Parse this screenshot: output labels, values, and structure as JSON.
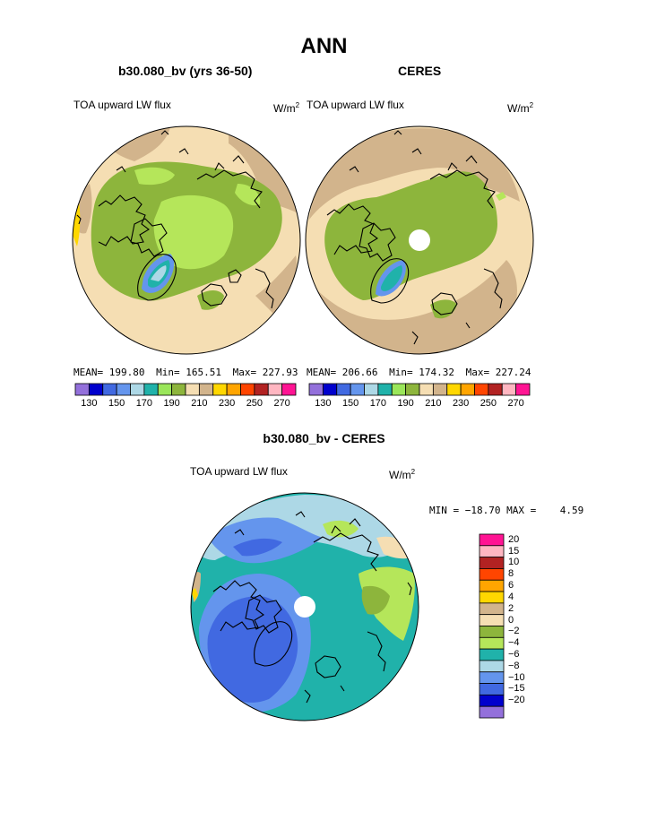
{
  "page": {
    "title": "ANN"
  },
  "panels": [
    {
      "title": "b30.080_bv (yrs 36-50)",
      "variable": "TOA upward LW flux",
      "units": "W/m",
      "units_sup": "2",
      "stats": {
        "mean_label": "MEAN=",
        "mean": "199.80",
        "min_label": "Min=",
        "min": "165.51",
        "max_label": "Max=",
        "max": "227.93"
      }
    },
    {
      "title": "CERES",
      "variable": "TOA upward LW flux",
      "units": "W/m",
      "units_sup": "2",
      "stats": {
        "mean_label": "MEAN=",
        "mean": "206.66",
        "min_label": "Min=",
        "min": "174.32",
        "max_label": "Max=",
        "max": "227.24"
      }
    },
    {
      "title": "b30.080_bv - CERES",
      "variable": "TOA upward LW flux",
      "units": "W/m",
      "units_sup": "2",
      "stats_line": "MIN = −18.70 MAX =    4.59"
    }
  ],
  "colorbar_abs": {
    "colors": [
      "#9370DB",
      "#0000CD",
      "#4169E1",
      "#6495ED",
      "#ADD8E6",
      "#20B2AA",
      "#9AE65A",
      "#8DB53C",
      "#F5DEB3",
      "#D2B48C",
      "#FFD700",
      "#FFA500",
      "#FF4500",
      "#B22222",
      "#FFB6C1",
      "#FF1493"
    ],
    "labels": [
      "130",
      "150",
      "170",
      "190",
      "210",
      "230",
      "250",
      "270"
    ]
  },
  "colorbar_diff": {
    "colors": [
      "#FF1493",
      "#FFB6C1",
      "#B22222",
      "#FF4500",
      "#FFA500",
      "#FFD700",
      "#D2B48C",
      "#F5DEB3",
      "#8DB53C",
      "#B5E65A",
      "#20B2AA",
      "#ADD8E6",
      "#6495ED",
      "#4169E1",
      "#0000CD",
      "#9370DB"
    ],
    "labels": [
      "20",
      "15",
      "10",
      "8",
      "6",
      "4",
      "2",
      "0",
      "−2",
      "−4",
      "−6",
      "−8",
      "−10",
      "−15",
      "−20"
    ]
  },
  "chart_data": [
    {
      "type": "heatmap",
      "title": "b30.080_bv (yrs 36-50)",
      "projection": "north polar stereographic",
      "variable": "TOA upward LW flux",
      "units": "W/m2",
      "contour_levels": [
        130,
        140,
        150,
        160,
        170,
        180,
        190,
        200,
        210,
        220,
        230,
        240,
        250,
        260,
        270
      ],
      "mean": 199.8,
      "min": 165.51,
      "max": 227.93
    },
    {
      "type": "heatmap",
      "title": "CERES",
      "projection": "north polar stereographic",
      "variable": "TOA upward LW flux",
      "units": "W/m2",
      "contour_levels": [
        130,
        140,
        150,
        160,
        170,
        180,
        190,
        200,
        210,
        220,
        230,
        240,
        250,
        260,
        270
      ],
      "mean": 206.66,
      "min": 174.32,
      "max": 227.24
    },
    {
      "type": "heatmap",
      "title": "b30.080_bv - CERES",
      "projection": "north polar stereographic",
      "variable": "TOA upward LW flux",
      "units": "W/m2",
      "contour_levels": [
        -20,
        -15,
        -10,
        -8,
        -6,
        -4,
        -2,
        0,
        2,
        4,
        6,
        8,
        10,
        15,
        20
      ],
      "min": -18.7,
      "max": 4.59
    }
  ]
}
